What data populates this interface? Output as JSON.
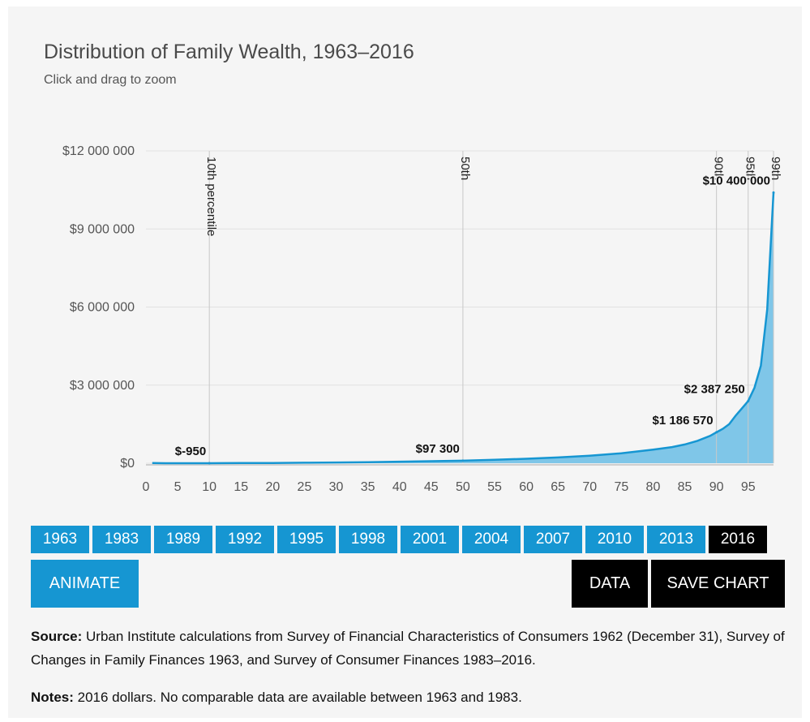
{
  "header": {
    "title": "Distribution of Family Wealth, 1963–2016",
    "subtitle": "Click and drag to zoom"
  },
  "chart_data": {
    "type": "area",
    "xlabel": "",
    "ylabel": "",
    "xlim": [
      0,
      99
    ],
    "ylim": [
      0,
      12000000
    ],
    "grid": true,
    "color": "#1696d2",
    "fill_color": "#7fc6e8",
    "y_ticks": [
      {
        "value": 0,
        "label": "$0"
      },
      {
        "value": 3000000,
        "label": "$3 000 000"
      },
      {
        "value": 6000000,
        "label": "$6 000 000"
      },
      {
        "value": 9000000,
        "label": "$9 000 000"
      },
      {
        "value": 12000000,
        "label": "$12 000 000"
      }
    ],
    "x_ticks": [
      0,
      5,
      10,
      15,
      20,
      25,
      30,
      35,
      40,
      45,
      50,
      55,
      60,
      65,
      70,
      75,
      80,
      85,
      90,
      95
    ],
    "reference_lines": [
      {
        "x": 10,
        "label": "10th percentile"
      },
      {
        "x": 50,
        "label": "50th"
      },
      {
        "x": 90,
        "label": "90th"
      },
      {
        "x": 95,
        "label": "95th"
      },
      {
        "x": 99,
        "label": "99th"
      }
    ],
    "annotations": [
      {
        "x": 10,
        "y": -950,
        "label": "$-950",
        "align": "end"
      },
      {
        "x": 50,
        "y": 97300,
        "label": "$97 300",
        "align": "end"
      },
      {
        "x": 90,
        "y": 1186570,
        "label": "$1 186 570",
        "align": "end"
      },
      {
        "x": 95,
        "y": 2387250,
        "label": "$2 387 250",
        "align": "end"
      },
      {
        "x": 99,
        "y": 10400000,
        "label": "$10 400 000",
        "align": "end"
      }
    ],
    "series": [
      {
        "name": "2016",
        "x": [
          1,
          3,
          5,
          7,
          9,
          10,
          12,
          15,
          20,
          25,
          30,
          35,
          40,
          45,
          50,
          55,
          60,
          65,
          70,
          75,
          80,
          83,
          85,
          87,
          89,
          90,
          91,
          92,
          93,
          94,
          95,
          96,
          97,
          98,
          99
        ],
        "y": [
          5000,
          -800,
          -950,
          -950,
          -950,
          -950,
          2000,
          5000,
          10000,
          18000,
          28000,
          42000,
          58000,
          77000,
          97300,
          130000,
          170000,
          220000,
          290000,
          380000,
          520000,
          620000,
          720000,
          860000,
          1050000,
          1186570,
          1320000,
          1500000,
          1820000,
          2100000,
          2387250,
          2900000,
          3750000,
          5900000,
          10400000
        ]
      }
    ]
  },
  "year_buttons": [
    {
      "label": "1963",
      "active": false
    },
    {
      "label": "1983",
      "active": false
    },
    {
      "label": "1989",
      "active": false
    },
    {
      "label": "1992",
      "active": false
    },
    {
      "label": "1995",
      "active": false
    },
    {
      "label": "1998",
      "active": false
    },
    {
      "label": "2001",
      "active": false
    },
    {
      "label": "2004",
      "active": false
    },
    {
      "label": "2007",
      "active": false
    },
    {
      "label": "2010",
      "active": false
    },
    {
      "label": "2013",
      "active": false
    },
    {
      "label": "2016",
      "active": true
    }
  ],
  "controls": {
    "animate_label": "ANIMATE",
    "data_label": "DATA",
    "save_label": "SAVE CHART"
  },
  "footer": {
    "source_label": "Source:",
    "source_text": " Urban Institute calculations from Survey of Financial Characteristics of Consumers 1962 (December 31), Survey of Changes in Family Finances 1963, and Survey of Consumer Finances 1983–2016.",
    "notes_label": "Notes:",
    "notes_text": "  2016 dollars. No comparable data are available between 1963 and 1983."
  },
  "colors": {
    "accent": "#1696d2",
    "active": "#000000",
    "panel": "#f5f5f5"
  }
}
